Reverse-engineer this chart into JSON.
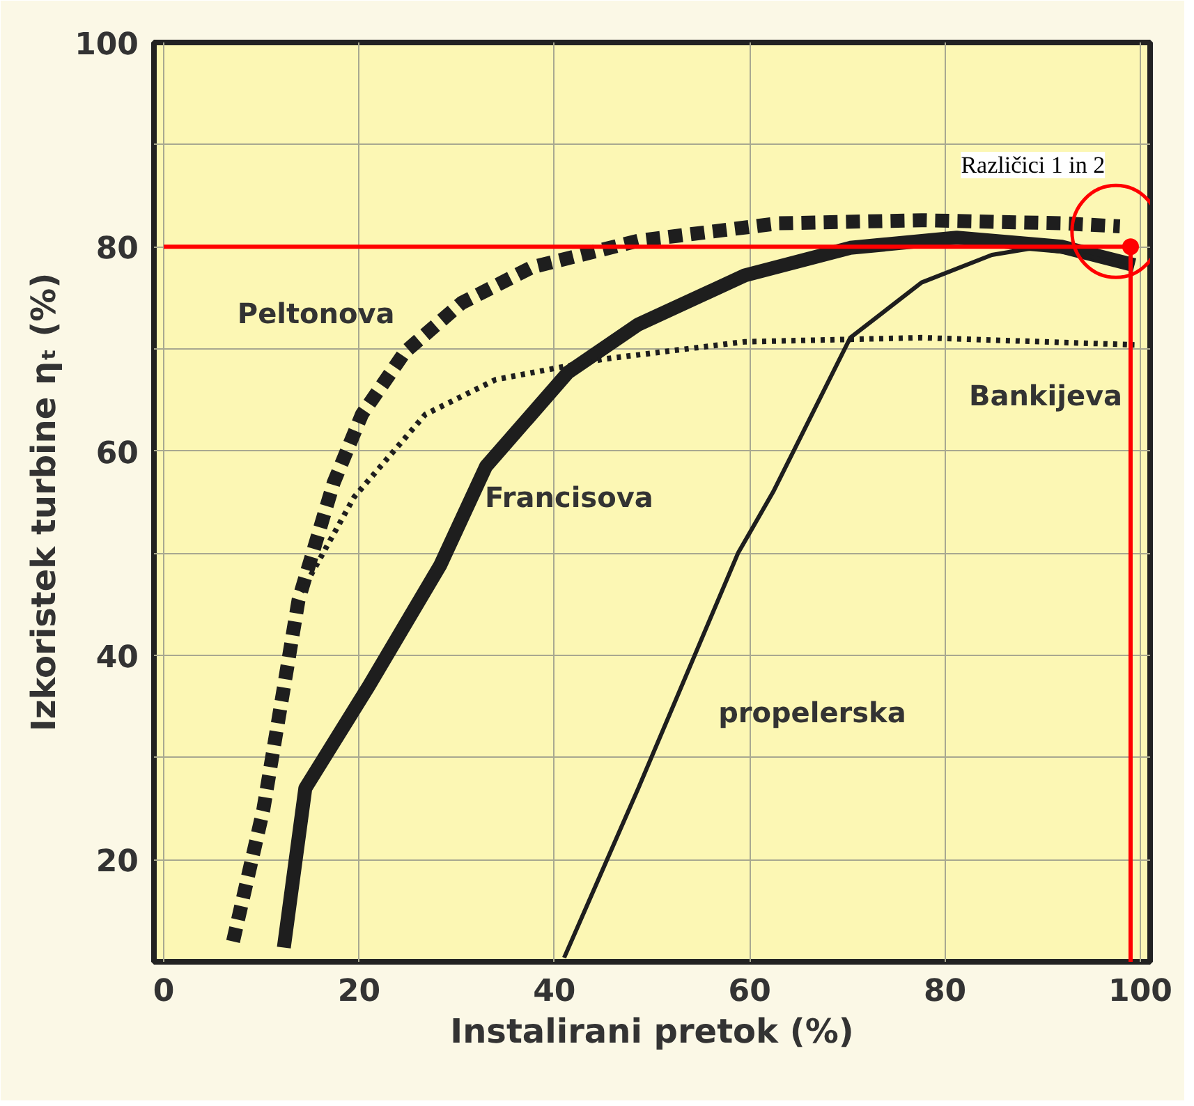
{
  "chart_data": {
    "type": "line",
    "xlabel": "Instalirani pretok (%)",
    "ylabel": "Izkoristek turbine ηₜ (%)",
    "xlim": [
      -1,
      101
    ],
    "ylim": [
      10,
      100
    ],
    "xticks": [
      0,
      20,
      40,
      60,
      80,
      100
    ],
    "yticks": [
      20,
      {
        "value": 30,
        "label": null
      },
      40,
      {
        "value": 50,
        "label": null
      },
      60,
      {
        "value": 70,
        "label": null
      },
      80,
      {
        "value": 90,
        "label": null
      },
      100
    ],
    "grid": true,
    "marker": "none",
    "series": [
      {
        "name": "Peltonova",
        "color": "#1e1e1e",
        "line_style": "dashed",
        "x": [
          7.1,
          10.2,
          13.8,
          17.4,
          20.3,
          24.7,
          30.5,
          37.7,
          48.6,
          63,
          77.6,
          92,
          97.9
        ],
        "values": [
          12,
          24.9,
          45.4,
          56.9,
          63.6,
          69.7,
          74.5,
          78,
          80.6,
          82.3,
          82.6,
          82.3,
          82
        ]
      },
      {
        "name": "Francisova",
        "color": "#1e1e1e",
        "line_style": "solid",
        "x": [
          12.3,
          14.5,
          21,
          28.3,
          33,
          41.4,
          48.6,
          59.5,
          70.3,
          81.2,
          92,
          99.4
        ],
        "values": [
          11.4,
          27,
          37,
          48.8,
          58.5,
          67.7,
          72.4,
          77.2,
          79.9,
          80.9,
          80,
          78.2
        ]
      },
      {
        "name": "Bankijeva",
        "color": "#1e1e1e",
        "line_style": "dotted",
        "x": [
          14.1,
          19.5,
          26.8,
          34,
          45,
          59.5,
          77.6,
          99.4
        ],
        "values": [
          46.2,
          55.5,
          63.6,
          67,
          69,
          70.7,
          71.1,
          70.4
        ]
      },
      {
        "name": "propelerska",
        "color": "#1e1e1e",
        "line_style": "solid",
        "x": [
          41,
          48.6,
          58.8,
          62.4,
          70.3,
          77.6,
          84.8,
          89.2,
          94.2,
          99
        ],
        "values": [
          10.4,
          27,
          50,
          56,
          71.1,
          76.5,
          79.2,
          79.9,
          79.2,
          78
        ]
      },
      {
        "type": "line",
        "color": "#ff0000",
        "line_style": "solid",
        "x": [
          0,
          99,
          99
        ],
        "values": [
          80,
          80,
          10
        ]
      },
      {
        "type": "scatter",
        "color": "#ff0000",
        "marker": "circle",
        "x": [
          99
        ],
        "values": [
          80
        ]
      }
    ],
    "annotations": [
      "Različici 1 in 2"
    ]
  }
}
